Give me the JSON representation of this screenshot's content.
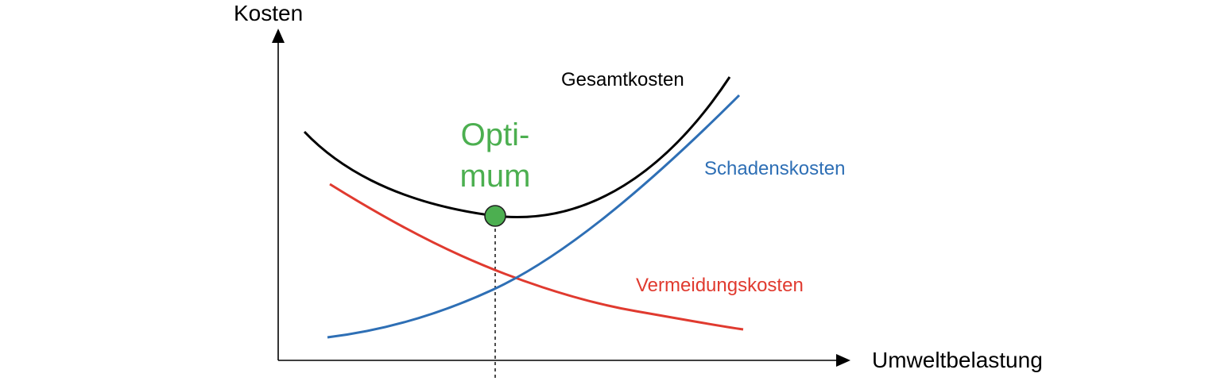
{
  "colors": {
    "axis": "#000000",
    "total": "#000000",
    "damage": "#2e6fb5",
    "avoidance": "#e03a2f",
    "optimum": "#4caf50"
  },
  "labels": {
    "y_axis": "Kosten",
    "x_axis": "Umweltbelastung",
    "total_curve": "Gesamtkosten",
    "damage_curve": "Schadenskosten",
    "avoidance_curve": "Vermeidungskosten",
    "optimum_line1": "Opti-",
    "optimum_line2": "mum"
  }
}
